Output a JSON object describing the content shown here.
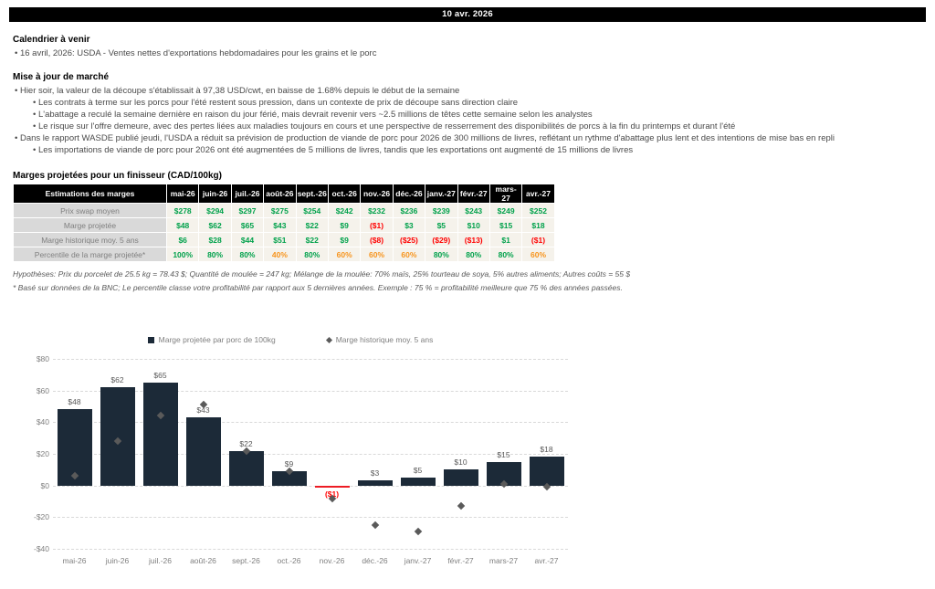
{
  "header": {
    "date": "10 avr. 2026"
  },
  "calendar": {
    "title": "Calendrier à venir",
    "bullets": [
      {
        "level": 1,
        "text": "16 avril, 2026: USDA - Ventes nettes d'exportations hebdomadaires pour les grains et le porc"
      }
    ]
  },
  "market_update": {
    "title": "Mise à jour de marché",
    "bullets": [
      {
        "level": 1,
        "text": "Hier soir, la valeur de la découpe s'établissait à 97,38 USD/cwt, en baisse de 1.68% depuis le début de la semaine"
      },
      {
        "level": 2,
        "text": "Les contrats à terme sur les porcs pour l'été restent sous pression, dans un contexte de prix de découpe sans direction claire"
      },
      {
        "level": 2,
        "text": "L'abattage a reculé la semaine dernière en raison du jour férié, mais devrait revenir vers ~2.5 millions de têtes cette semaine selon les analystes"
      },
      {
        "level": 2,
        "text": "Le risque sur l'offre demeure, avec des pertes liées aux maladies toujours en cours et une perspective de resserrement des disponibilités de porcs à la fin du printemps et durant l'été"
      },
      {
        "level": 1,
        "text": "Dans le rapport WASDE publié jeudi, l'USDA a réduit sa prévision de production de viande de porc pour 2026 de 300 millions de livres, reflétant un rythme d'abattage plus lent et des intentions de mise bas en repli"
      },
      {
        "level": 2,
        "text": "Les importations de viande de porc pour 2026 ont été augmentées de 5 millions de livres, tandis que les exportations ont augmenté de 15 millions de livres"
      }
    ]
  },
  "margins_section": {
    "title": "Marges projetées pour un finisseur (CAD/100kg)",
    "table": {
      "header": [
        "Estimations des marges",
        "mai-26",
        "juin-26",
        "juil.-26",
        "août-26",
        "sept.-26",
        "oct.-26",
        "nov.-26",
        "déc.-26",
        "janv.-27",
        "févr.-27",
        "mars-27",
        "avr.-27"
      ],
      "rows": [
        {
          "label": "Prix swap moyen",
          "values": [
            "$278",
            "$294",
            "$297",
            "$275",
            "$254",
            "$242",
            "$232",
            "$236",
            "$239",
            "$243",
            "$249",
            "$252"
          ]
        },
        {
          "label": "Marge projetée",
          "values": [
            "$48",
            "$62",
            "$65",
            "$43",
            "$22",
            "$9",
            "($1)",
            "$3",
            "$5",
            "$10",
            "$15",
            "$18"
          ]
        },
        {
          "label": "Marge historique moy. 5 ans",
          "values": [
            "$6",
            "$28",
            "$44",
            "$51",
            "$22",
            "$9",
            "($8)",
            "($25)",
            "($29)",
            "($13)",
            "$1",
            "($1)"
          ]
        },
        {
          "label": "Percentile de la marge projetée*",
          "values": [
            "100%",
            "80%",
            "80%",
            "40%",
            "80%",
            "60%",
            "60%",
            "60%",
            "80%",
            "80%",
            "80%",
            "60%"
          ]
        }
      ]
    },
    "notes": [
      "Hypothèses: Prix du porcelet de 25.5 kg = 78.43 $; Quantité de moulée = 247 kg; Mélange de la moulée: 70% maïs, 25% tourteau de soya, 5% autres aliments; Autres coûts = 55 $",
      "* Basé sur données de la BNC; Le percentile classe votre profitabilité par rapport aux 5 dernières années. Exemple : 75 % = profitabilité meilleure que 75 % des années passées."
    ]
  },
  "chart_data": {
    "type": "bar",
    "title": "",
    "categories": [
      "mai-26",
      "juin-26",
      "juil.-26",
      "août-26",
      "sept.-26",
      "oct.-26",
      "nov.-26",
      "déc.-26",
      "janv.-27",
      "févr.-27",
      "mars-27",
      "avr.-27"
    ],
    "series": [
      {
        "name": "Marge projetée par porc de 100kg",
        "type": "bar",
        "values": [
          48,
          62,
          65,
          43,
          22,
          9,
          -1,
          3,
          5,
          10,
          15,
          18
        ],
        "labels": [
          "$48",
          "$62",
          "$65",
          "$43",
          "$22",
          "$9",
          "($1)",
          "$3",
          "$5",
          "$10",
          "$15",
          "$18"
        ]
      },
      {
        "name": "Marge historique moy. 5 ans",
        "type": "scatter-diamond",
        "values": [
          6,
          28,
          44,
          51,
          22,
          9,
          -8,
          -25,
          -29,
          -13,
          1,
          -1
        ]
      }
    ],
    "ylim": [
      -40,
      80
    ],
    "yticks": [
      {
        "value": 80,
        "label": "$80"
      },
      {
        "value": 60,
        "label": "$60"
      },
      {
        "value": 40,
        "label": "$40"
      },
      {
        "value": 20,
        "label": "$20"
      },
      {
        "value": 0,
        "label": "$0"
      },
      {
        "value": -20,
        "label": "-$20"
      },
      {
        "value": -40,
        "label": "-$40"
      }
    ],
    "legend_position": "top",
    "grid": "dashed-horizontal",
    "xlabel": "",
    "ylabel": ""
  },
  "colors": {
    "bar_positive": "#1c2a38",
    "bar_negative": "#ed1c24",
    "diamond": "#5a5a5a",
    "table_green": "#00a14b",
    "table_red": "#ff0000",
    "table_orange": "#f7941d",
    "label_neg_red": "#ff0000"
  }
}
